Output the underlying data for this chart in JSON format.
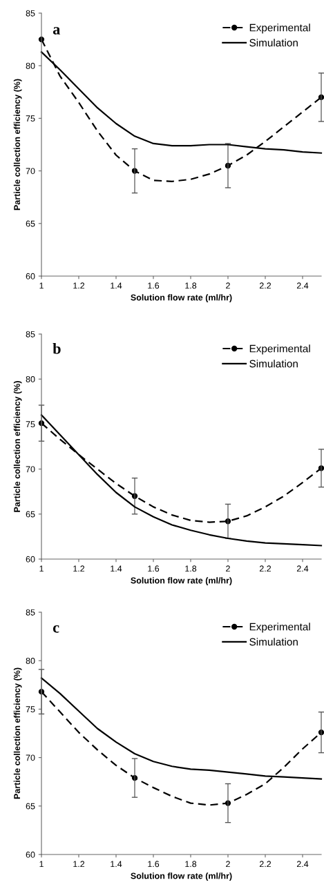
{
  "chart_data": [
    {
      "type": "line",
      "title": "a",
      "xlabel": "Solution flow rate (ml/hr)",
      "ylabel": "Particle collection efficiency (%)",
      "xlim": [
        1,
        2.5
      ],
      "ylim": [
        60,
        85
      ],
      "xticks": [
        1,
        1.2,
        1.4,
        1.6,
        1.8,
        2,
        2.2,
        2.4
      ],
      "yticks": [
        60,
        65,
        70,
        75,
        80,
        85
      ],
      "grid": false,
      "legend": "top right",
      "series": [
        {
          "type": "line",
          "color": "#000000",
          "marker": "none",
          "line_style": "dashed",
          "x": [
            1,
            1.1,
            1.2,
            1.3,
            1.4,
            1.5,
            1.6,
            1.7,
            1.8,
            1.9,
            2,
            2.1,
            2.2,
            2.3,
            2.4,
            2.5
          ],
          "values": [
            82.5,
            79.0,
            76.5,
            73.8,
            71.5,
            70.0,
            69.1,
            69.0,
            69.2,
            69.7,
            70.5,
            71.5,
            72.8,
            74.2,
            75.6,
            77.0
          ]
        },
        {
          "type": "scatter",
          "name": "Experimental",
          "color": "#000000",
          "marker": "circle",
          "line_style": "dashed",
          "x": [
            1,
            1.5,
            2,
            2.5
          ],
          "values": [
            82.5,
            70.0,
            70.5,
            77.0
          ],
          "errors": [
            null,
            2.1,
            2.1,
            2.3
          ]
        },
        {
          "name": "Simulation",
          "color": "#000000",
          "marker": "none",
          "line_style": "solid",
          "x": [
            1,
            1.1,
            1.2,
            1.3,
            1.4,
            1.5,
            1.6,
            1.7,
            1.8,
            1.9,
            2,
            2.1,
            2.2,
            2.3,
            2.4,
            2.5
          ],
          "values": [
            81.3,
            79.6,
            77.8,
            76.0,
            74.5,
            73.3,
            72.6,
            72.4,
            72.4,
            72.5,
            72.5,
            72.3,
            72.1,
            72.0,
            71.8,
            71.7
          ]
        }
      ]
    },
    {
      "type": "line",
      "title": "b",
      "xlabel": "Solution flow rate (ml/hr)",
      "ylabel": "Particle collection efficiency (%)",
      "xlim": [
        1,
        2.5
      ],
      "ylim": [
        60,
        85
      ],
      "xticks": [
        1,
        1.2,
        1.4,
        1.6,
        1.8,
        2,
        2.2,
        2.4
      ],
      "yticks": [
        60,
        65,
        70,
        75,
        80,
        85
      ],
      "grid": false,
      "legend": "top right",
      "series": [
        {
          "type": "line",
          "color": "#000000",
          "marker": "none",
          "line_style": "dashed",
          "x": [
            1,
            1.1,
            1.2,
            1.3,
            1.4,
            1.5,
            1.6,
            1.7,
            1.8,
            1.9,
            2,
            2.1,
            2.2,
            2.3,
            2.4,
            2.5
          ],
          "values": [
            75.1,
            73.3,
            71.6,
            70.0,
            68.4,
            67.0,
            65.8,
            64.9,
            64.3,
            64.1,
            64.2,
            64.8,
            65.8,
            67.0,
            68.5,
            70.1
          ]
        },
        {
          "type": "scatter",
          "name": "Experimental",
          "color": "#000000",
          "marker": "circle",
          "line_style": "dashed",
          "x": [
            1,
            1.5,
            2,
            2.5
          ],
          "values": [
            75.1,
            67.0,
            64.2,
            70.1
          ],
          "errors": [
            2.0,
            2.0,
            1.9,
            2.1
          ]
        },
        {
          "name": "Simulation",
          "color": "#000000",
          "marker": "none",
          "line_style": "solid",
          "x": [
            1,
            1.1,
            1.2,
            1.3,
            1.4,
            1.5,
            1.6,
            1.7,
            1.8,
            1.9,
            2,
            2.1,
            2.2,
            2.3,
            2.4,
            2.5
          ],
          "values": [
            76.0,
            73.8,
            71.6,
            69.4,
            67.4,
            65.8,
            64.7,
            63.8,
            63.2,
            62.7,
            62.3,
            62.0,
            61.8,
            61.7,
            61.6,
            61.5
          ]
        }
      ]
    },
    {
      "type": "line",
      "title": "c",
      "xlabel": "Solution flow rate (ml/hr)",
      "ylabel": "Particle collection efficiency (%)",
      "xlim": [
        1,
        2.5
      ],
      "ylim": [
        60,
        85
      ],
      "xticks": [
        1,
        1.2,
        1.4,
        1.6,
        1.8,
        2,
        2.2,
        2.4
      ],
      "yticks": [
        60,
        65,
        70,
        75,
        80,
        85
      ],
      "grid": false,
      "legend": "top right",
      "series": [
        {
          "type": "line",
          "color": "#000000",
          "marker": "none",
          "line_style": "dashed",
          "x": [
            1,
            1.1,
            1.2,
            1.3,
            1.4,
            1.5,
            1.6,
            1.7,
            1.8,
            1.9,
            2,
            2.1,
            2.2,
            2.3,
            2.4,
            2.5
          ],
          "values": [
            76.8,
            74.7,
            72.6,
            70.8,
            69.2,
            67.9,
            66.9,
            66.0,
            65.3,
            65.1,
            65.3,
            66.2,
            67.3,
            69.0,
            70.9,
            72.6
          ]
        },
        {
          "type": "scatter",
          "name": "Experimental",
          "color": "#000000",
          "marker": "circle",
          "line_style": "dashed",
          "x": [
            1,
            1.5,
            2,
            2.5
          ],
          "values": [
            76.8,
            67.9,
            65.3,
            72.6
          ],
          "errors": [
            2.3,
            2.0,
            2.0,
            2.1
          ]
        },
        {
          "name": "Simulation",
          "color": "#000000",
          "marker": "none",
          "line_style": "solid",
          "x": [
            1,
            1.1,
            1.2,
            1.3,
            1.4,
            1.5,
            1.6,
            1.7,
            1.8,
            1.9,
            2,
            2.1,
            2.2,
            2.3,
            2.4,
            2.5
          ],
          "values": [
            78.2,
            76.6,
            74.8,
            73.0,
            71.6,
            70.4,
            69.6,
            69.1,
            68.8,
            68.7,
            68.5,
            68.3,
            68.1,
            68.0,
            67.9,
            67.8
          ]
        }
      ]
    }
  ]
}
